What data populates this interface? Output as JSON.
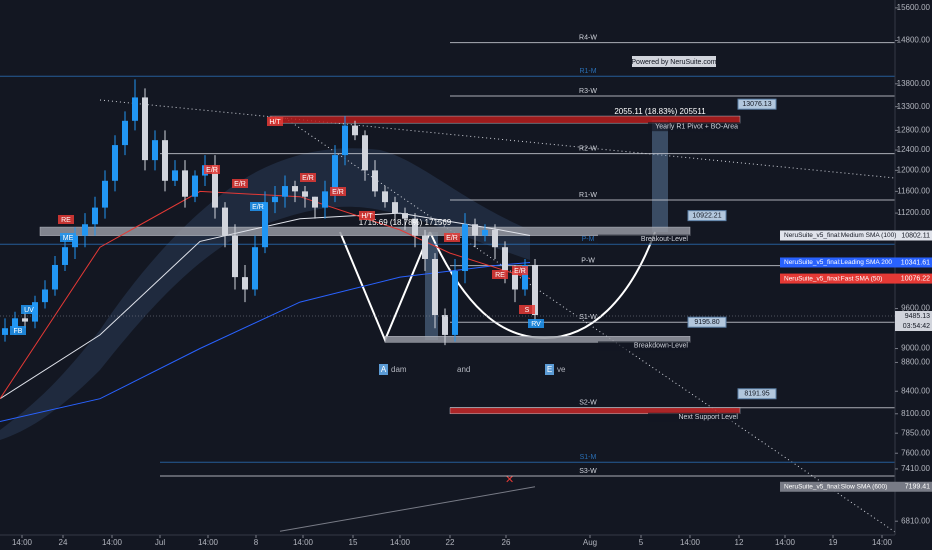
{
  "chart_data": {
    "type": "candlestick",
    "log_scale": true,
    "ylim": [
      6660,
      15800
    ],
    "yticks": [
      {
        "value": 15600,
        "label": "15600.00"
      },
      {
        "value": 14800,
        "label": "14800.00"
      },
      {
        "value": 13800,
        "label": "13800.00"
      },
      {
        "value": 13300,
        "label": "13300.00"
      },
      {
        "value": 12800,
        "label": "12800.00"
      },
      {
        "value": 12400,
        "label": "12400.00"
      },
      {
        "value": 12000,
        "label": "12000.00"
      },
      {
        "value": 11600,
        "label": "11600.00"
      },
      {
        "value": 11200,
        "label": "11200.00"
      },
      {
        "value": 9600,
        "label": "9600.00"
      },
      {
        "value": 9000,
        "label": "9000.00"
      },
      {
        "value": 8800,
        "label": "8800.00"
      },
      {
        "value": 8400,
        "label": "8400.00"
      },
      {
        "value": 8100,
        "label": "8100.00"
      },
      {
        "value": 7850,
        "label": "7850.00"
      },
      {
        "value": 7600,
        "label": "7600.00"
      },
      {
        "value": 7410,
        "label": "7410.00"
      },
      {
        "value": 6810,
        "label": "6810.00"
      }
    ],
    "xlim": [
      0,
      89.5
    ],
    "xticks": [
      {
        "value": 2.2,
        "label": "14:00"
      },
      {
        "value": 6.3,
        "label": "24"
      },
      {
        "value": 11.2,
        "label": "14:00"
      },
      {
        "value": 16,
        "label": "Jul"
      },
      {
        "value": 20.8,
        "label": "14:00"
      },
      {
        "value": 25.6,
        "label": "8"
      },
      {
        "value": 30.3,
        "label": "14:00"
      },
      {
        "value": 35.3,
        "label": "15"
      },
      {
        "value": 40,
        "label": "14:00"
      },
      {
        "value": 45,
        "label": "22"
      },
      {
        "value": 50.6,
        "label": "26"
      },
      {
        "value": 59,
        "label": "Aug"
      },
      {
        "value": 64.1,
        "label": "5"
      },
      {
        "value": 69,
        "label": "14:00"
      },
      {
        "value": 73.9,
        "label": "12"
      },
      {
        "value": 78.5,
        "label": "14:00"
      },
      {
        "value": 83.3,
        "label": "19"
      },
      {
        "value": 88.2,
        "label": "14:00"
      }
    ],
    "up_color": "#2196f3",
    "down_color": "#d1d4dc",
    "x": [
      0.5,
      1.5,
      2.5,
      3.5,
      4.5,
      5.5,
      6.5,
      7.5,
      8.5,
      9.5,
      10.5,
      11.5,
      12.5,
      13.5,
      14.5,
      15.5,
      16.5,
      17.5,
      18.5,
      19.5,
      20.5,
      21.5,
      22.5,
      23.5,
      24.5,
      25.5,
      26.5,
      27.5,
      28.5,
      29.5,
      30.5,
      31.5,
      32.5,
      33.5,
      34.5,
      35.5,
      36.5,
      37.5,
      38.5,
      39.5,
      40.5,
      41.5,
      42.5,
      43.5,
      44.5,
      45.5,
      46.5,
      47.5,
      48.5,
      49.5,
      50.5,
      51.5,
      52.5,
      53.5
    ],
    "open": [
      9200,
      9300,
      9450,
      9400,
      9700,
      9900,
      10300,
      10600,
      10800,
      11000,
      11300,
      11800,
      12500,
      13000,
      13500,
      12200,
      12600,
      11800,
      12000,
      11500,
      11900,
      12100,
      11300,
      10800,
      10100,
      9900,
      10600,
      11400,
      11500,
      11700,
      11600,
      11500,
      11300,
      11600,
      12300,
      12900,
      12700,
      12000,
      11600,
      11400,
      11200,
      11100,
      10800,
      10400,
      9500,
      9200,
      10200,
      11000,
      10800,
      10900,
      10600,
      10200,
      9900,
      10300
    ],
    "high": [
      9450,
      9550,
      9600,
      9800,
      10050,
      10450,
      10750,
      10950,
      11200,
      11500,
      12000,
      12700,
      13200,
      13900,
      13700,
      12800,
      12800,
      12200,
      12200,
      12000,
      12300,
      12300,
      11400,
      11000,
      10300,
      10800,
      11600,
      11700,
      11900,
      11800,
      11700,
      11500,
      11800,
      12500,
      13100,
      13000,
      12800,
      12200,
      11700,
      11500,
      11300,
      11200,
      10900,
      10500,
      9600,
      10400,
      11200,
      11100,
      11000,
      11000,
      10700,
      10300,
      10400,
      10400
    ],
    "low": [
      9100,
      9200,
      9300,
      9300,
      9600,
      9800,
      10200,
      10400,
      10600,
      10800,
      11100,
      11600,
      12300,
      12800,
      12000,
      12000,
      11600,
      11700,
      11300,
      11400,
      11700,
      11100,
      10600,
      9900,
      9700,
      9800,
      10500,
      11200,
      11300,
      11400,
      11300,
      11100,
      11100,
      11400,
      12100,
      12600,
      11800,
      11500,
      11300,
      11000,
      10900,
      10600,
      10200,
      9300,
      9050,
      9100,
      10000,
      10600,
      10700,
      10400,
      10000,
      9700,
      9800,
      9400
    ],
    "close": [
      9300,
      9450,
      9400,
      9700,
      9900,
      10300,
      10600,
      10800,
      11000,
      11300,
      11800,
      12500,
      13000,
      13500,
      12200,
      12600,
      11800,
      12000,
      11500,
      11900,
      12100,
      11300,
      10800,
      10100,
      9900,
      10600,
      11400,
      11500,
      11700,
      11600,
      11500,
      11300,
      11600,
      12300,
      12900,
      12700,
      12000,
      11600,
      11400,
      11200,
      11100,
      10800,
      10400,
      9500,
      9200,
      10200,
      11000,
      10800,
      10900,
      10600,
      10200,
      9900,
      10300,
      9500
    ],
    "series": [
      {
        "name": "NeruSuite_v5_final:Medium SMA (100)",
        "color": "#e0e3eb",
        "x": [
          0,
          10,
          20,
          30,
          40,
          50,
          53
        ],
        "values": [
          8300,
          9200,
          10700,
          11100,
          11200,
          10900,
          10802.11
        ],
        "tag_label": "10802.11"
      },
      {
        "name": "NeruSuite_v5_final:Leading SMA 200",
        "color": "#2962ff",
        "x": [
          0,
          10,
          20,
          30,
          40,
          50,
          53
        ],
        "values": [
          8000,
          8300,
          9000,
          9700,
          10100,
          10300,
          10341.61
        ],
        "tag_label": "10341.61"
      },
      {
        "name": "NeruSuite_v5_final:Fast SMA (50)",
        "color": "#e53935",
        "x": [
          0,
          10,
          20,
          30,
          40,
          45,
          53
        ],
        "values": [
          8300,
          10600,
          11600,
          11500,
          10900,
          10500,
          10076.22
        ],
        "tag_label": "10076.22"
      },
      {
        "name": "NeruSuite_v5_final:Slow SMA (600)",
        "color": "#787b86",
        "x": [
          28,
          53.5
        ],
        "values": [
          6700,
          7199.41
        ],
        "tag_label": "7199.41"
      }
    ],
    "last_price": {
      "value": 9485.13,
      "label": "9485.13",
      "countdown": "03:54:42"
    },
    "levels": [
      {
        "label": "R4-W",
        "value": 14750,
        "from": 45,
        "color": "#d1d4dc"
      },
      {
        "label": "R1-M",
        "value": 13970,
        "from": 0,
        "color": "#2a6fb5"
      },
      {
        "label": "R3-W",
        "value": 13530,
        "from": 45,
        "color": "#d1d4dc"
      },
      {
        "label": "R2-W",
        "value": 12330,
        "from": 16,
        "color": "#d1d4dc"
      },
      {
        "label": "R1-W",
        "value": 11440,
        "from": 45,
        "color": "#d1d4dc"
      },
      {
        "label": "P-M",
        "value": 10650,
        "from": 0,
        "color": "#2a6fb5"
      },
      {
        "label": "P-W",
        "value": 10290,
        "from": 45,
        "color": "#d1d4dc"
      },
      {
        "label": "S1-W",
        "value": 9390,
        "from": 45,
        "color": "#d1d4dc"
      },
      {
        "label": "S2-W",
        "value": 8180,
        "from": 45,
        "color": "#d1d4dc"
      },
      {
        "label": "S1-M",
        "value": 7490,
        "from": 16,
        "color": "#2a6fb5"
      },
      {
        "label": "S3-W",
        "value": 7325,
        "from": 16,
        "color": "#d1d4dc"
      }
    ],
    "bands": [
      {
        "label": "Yearly R1 Pivot + BO-Area",
        "range": [
          12950,
          13100
        ],
        "x": [
          27,
          74
        ],
        "color": "#b71c1c",
        "tag": 13076.13
      },
      {
        "label": "Breakout-Level",
        "range": [
          10800,
          10950
        ],
        "x": [
          4,
          69
        ],
        "color": "#9598a1",
        "tag": 10922.21
      },
      {
        "label": "Breakdown-Level",
        "range": [
          9090,
          9180
        ],
        "x": [
          38.5,
          69
        ],
        "color": "#9598a1",
        "tag": {
          "value": 9195.8,
          "label": "9195.80"
        }
      },
      {
        "label": "Next Support Level",
        "range": [
          8100,
          8180
        ],
        "x": [
          45,
          74
        ],
        "color": "#c62828",
        "tag": 8191.95
      }
    ],
    "annotations": {
      "measure_1": "2055.11 (18.83%) 205511",
      "measure_2": "1715.69 (18.78%) 171569",
      "powered": "Powered by NeruSuite.com",
      "adam_a": "A",
      "adam": "dam",
      "and": "and",
      "eve_e": "E",
      "eve": "ve",
      "signals": [
        "H/T",
        "H/T",
        "E/R",
        "E/R",
        "E/R",
        "E/R",
        "E/R",
        "E/R",
        "E/R",
        "RE",
        "RE",
        "S",
        "RV",
        "UV",
        "FB",
        "ME"
      ]
    }
  }
}
